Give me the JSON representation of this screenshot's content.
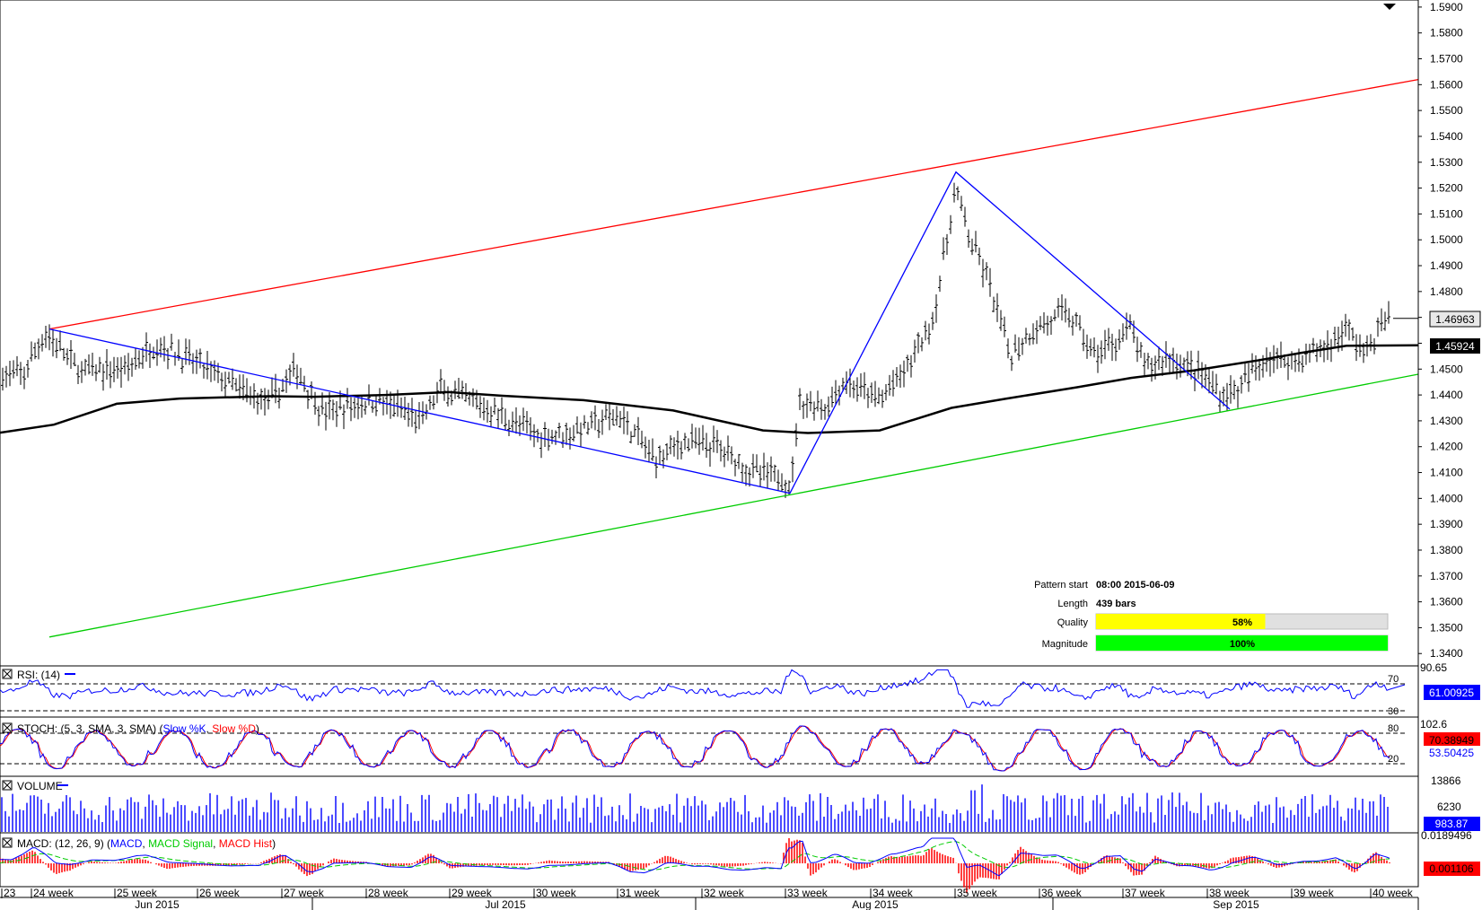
{
  "chart_data": {
    "type": "line",
    "price": {
      "y_ticks": [
        "1.3400",
        "1.3500",
        "1.3600",
        "1.3700",
        "1.3800",
        "1.3900",
        "1.4000",
        "1.4100",
        "1.4200",
        "1.4300",
        "1.4400",
        "1.4500",
        "1.4600",
        "1.4700",
        "1.4800",
        "1.4900",
        "1.5000",
        "1.5100",
        "1.5200",
        "1.5300",
        "1.5400",
        "1.5500",
        "1.5600",
        "1.5700",
        "1.5800",
        "1.5900"
      ],
      "ylim": [
        1.338,
        1.591
      ],
      "last_price": "1.46963",
      "ma_value": "1.45924",
      "moving_average": [
        [
          0,
          1.4254
        ],
        [
          60,
          1.4285
        ],
        [
          130,
          1.4366
        ],
        [
          200,
          1.4386
        ],
        [
          300,
          1.4395
        ],
        [
          350,
          1.4393
        ],
        [
          430,
          1.44
        ],
        [
          500,
          1.4411
        ],
        [
          560,
          1.4397
        ],
        [
          650,
          1.438
        ],
        [
          750,
          1.434
        ],
        [
          850,
          1.4263
        ],
        [
          900,
          1.4253
        ],
        [
          980,
          1.4263
        ],
        [
          1060,
          1.435
        ],
        [
          1120,
          1.4385
        ],
        [
          1200,
          1.443
        ],
        [
          1260,
          1.4466
        ],
        [
          1330,
          1.4495
        ],
        [
          1400,
          1.4533
        ],
        [
          1450,
          1.4563
        ],
        [
          1500,
          1.459
        ],
        [
          1580,
          1.4592
        ]
      ],
      "pattern_lines": [
        {
          "color": "#ff0000",
          "points": [
            [
              55,
              1.4655
            ],
            [
              1580,
              1.562
            ]
          ]
        },
        {
          "color": "#00cc00",
          "points": [
            [
              55,
              1.3464
            ],
            [
              1580,
              1.448
            ]
          ]
        },
        {
          "color": "#0000ff",
          "points": [
            [
              55,
              1.4655
            ],
            [
              880,
              1.402
            ],
            [
              1065,
              1.5262
            ],
            [
              1370,
              1.4345
            ]
          ]
        }
      ],
      "pattern_info": {
        "start_label": "Pattern start",
        "start_value": "08:00 2015-06-09",
        "length_label": "Length",
        "length_value": "439 bars",
        "quality_label": "Quality",
        "quality_value": "58%",
        "quality_fraction": 0.58,
        "magnitude_label": "Magnitude",
        "magnitude_value": "100%",
        "magnitude_fraction": 1.0
      }
    },
    "rsi": {
      "title": "RSI: (14)",
      "levels": [
        "70",
        "30"
      ],
      "top_label": "90.65",
      "value": "61.00925",
      "ylim": [
        0,
        100
      ]
    },
    "stoch": {
      "title_prefix": "STOCH: (5, 3, SMA, 3, SMA)",
      "k_name": "Slow %K",
      "d_name": "Slow %D",
      "levels": [
        "80",
        "20"
      ],
      "top_label": "102.6",
      "k_value": "70.38949",
      "d_value": "53.50425"
    },
    "volume": {
      "title": "VOLUME",
      "ticks": [
        "13866",
        "6230"
      ],
      "value": "983.87"
    },
    "macd": {
      "title_prefix": "MACD: (12, 26, 9)",
      "macd_name": "MACD",
      "signal_name": "MACD Signal",
      "hist_name": "MACD Hist",
      "top_label": "0.0189496",
      "value": "0.001106"
    },
    "x_axis": {
      "weeks": [
        "23",
        "24 week",
        "25 week",
        "26 week",
        "27 week",
        "28 week",
        "29 week",
        "30 week",
        "31 week",
        "32 week",
        "33 week",
        "34 week",
        "35 week",
        "36 week",
        "37 week",
        "38 week",
        "39 week",
        "40 week"
      ],
      "months": [
        "Jun 2015",
        "Jul 2015",
        "Aug 2015",
        "Sep 2015"
      ]
    }
  },
  "colors": {
    "rsi": "#0000ff",
    "stoch_k": "#0000ff",
    "stoch_d": "#ff0000",
    "volume": "#0000ff",
    "macd": "#0000ff",
    "macd_signal": "#00cc00",
    "macd_hist": "#ff0000",
    "quality_bar": "#ffff00",
    "magnitude_bar": "#00ff00"
  },
  "icons": [
    "scroll-arrow-icon",
    "close-box-icon"
  ]
}
